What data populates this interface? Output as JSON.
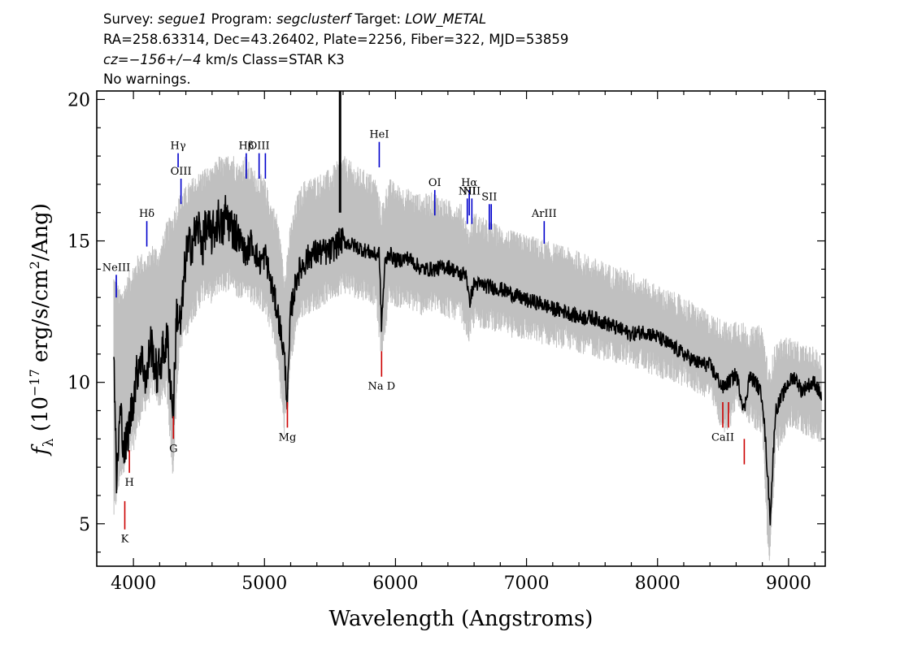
{
  "header": {
    "line1": [
      {
        "text": "Survey: ",
        "italic": false
      },
      {
        "text": "segue1",
        "italic": true
      },
      {
        "text": " Program: ",
        "italic": false
      },
      {
        "text": "segclusterf",
        "italic": true
      },
      {
        "text": " Target: ",
        "italic": false
      },
      {
        "text": "LOW_METAL",
        "italic": true
      }
    ],
    "line2": "RA=258.63314, Dec=43.26402, Plate=2256, Fiber=322, MJD=53859",
    "line3": [
      {
        "text": "cz=",
        "italic": true
      },
      {
        "text": "−156+/−4",
        "italic": true
      },
      {
        "text": " km/s Class=STAR K3",
        "italic": false
      }
    ],
    "line4": "No warnings."
  },
  "chart_data": {
    "type": "line",
    "xlabel": "Wavelength (Angstroms)",
    "ylabel_parts": {
      "f": "f",
      "sub": "λ",
      "pre": " (10",
      "exp1": "−17",
      "mid": " erg/s/cm",
      "exp2": "2",
      "post": "/Ang)"
    },
    "xlim": [
      3720,
      9280
    ],
    "ylim": [
      3.5,
      20.3
    ],
    "xticks": [
      4000,
      5000,
      6000,
      7000,
      8000,
      9000
    ],
    "yticks": [
      5,
      10,
      15,
      20
    ],
    "series": [
      {
        "role": "error-envelope",
        "color": "#c0c0c0",
        "x": [
          3850,
          3900,
          3950,
          4000,
          4050,
          4100,
          4150,
          4200,
          4250,
          4300,
          4350,
          4400,
          4450,
          4500,
          4550,
          4600,
          4650,
          4700,
          4750,
          4800,
          4850,
          4900,
          4950,
          5000,
          5050,
          5100,
          5150,
          5200,
          5250,
          5300,
          5400,
          5500,
          5600,
          5700,
          5800,
          5850,
          5890,
          5950,
          6000,
          6100,
          6200,
          6300,
          6400,
          6500,
          6560,
          6600,
          6700,
          6800,
          6900,
          7000,
          7200,
          7400,
          7600,
          7800,
          8000,
          8200,
          8400,
          8500,
          8550,
          8600,
          8700,
          8800,
          8850,
          8900,
          9000,
          9100,
          9200,
          9250
        ],
        "y": [
          13.5,
          12.8,
          13.3,
          13.8,
          14.2,
          14.0,
          14.5,
          14.3,
          15.2,
          15.6,
          16.2,
          16.5,
          16.8,
          17.0,
          17.2,
          17.1,
          17.6,
          17.5,
          17.8,
          17.3,
          17.6,
          17.2,
          17.0,
          16.8,
          16.0,
          15.5,
          13.5,
          15.2,
          16.2,
          16.7,
          16.9,
          17.1,
          17.6,
          17.2,
          17.0,
          16.8,
          15.8,
          16.8,
          16.6,
          16.4,
          16.2,
          16.3,
          16.0,
          15.9,
          15.0,
          15.6,
          15.3,
          15.1,
          14.9,
          14.8,
          14.5,
          14.2,
          13.8,
          13.5,
          13.0,
          12.6,
          12.0,
          11.8,
          11.6,
          11.9,
          11.5,
          11.6,
          10.0,
          11.0,
          11.2,
          10.9,
          10.8,
          10.6
        ],
        "y_low": [
          5.5,
          7.0,
          7.5,
          8.0,
          9.0,
          9.5,
          10.0,
          9.5,
          10.0,
          7.0,
          11.5,
          12.0,
          12.6,
          13.0,
          13.4,
          13.2,
          13.6,
          13.6,
          13.8,
          13.3,
          13.6,
          13.2,
          13.1,
          12.8,
          12.2,
          11.0,
          8.5,
          11.0,
          12.4,
          12.8,
          13.0,
          13.3,
          13.6,
          13.4,
          13.3,
          13.1,
          11.2,
          13.2,
          13.1,
          13.0,
          12.8,
          12.9,
          12.7,
          12.6,
          11.8,
          12.4,
          12.3,
          12.2,
          12.0,
          11.9,
          11.7,
          11.5,
          11.2,
          11.0,
          10.6,
          10.3,
          9.8,
          8.6,
          8.8,
          9.5,
          9.0,
          8.5,
          3.5,
          7.8,
          8.8,
          8.6,
          8.4,
          8.3
        ]
      },
      {
        "role": "flux",
        "color": "#000000",
        "x": [
          3850,
          3870,
          3900,
          3933,
          3968,
          4000,
          4050,
          4080,
          4101,
          4130,
          4180,
          4220,
          4260,
          4290,
          4305,
          4330,
          4361,
          4400,
          4450,
          4500,
          4530,
          4550,
          4600,
          4650,
          4680,
          4700,
          4750,
          4800,
          4861,
          4900,
          4959,
          5007,
          5050,
          5100,
          5150,
          5175,
          5200,
          5250,
          5300,
          5350,
          5400,
          5500,
          5577,
          5600,
          5700,
          5800,
          5850,
          5876,
          5893,
          5920,
          5950,
          6000,
          6100,
          6200,
          6300,
          6400,
          6500,
          6540,
          6563,
          6600,
          6700,
          6800,
          6900,
          7000,
          7100,
          7200,
          7300,
          7400,
          7500,
          7600,
          7700,
          7800,
          7900,
          8000,
          8100,
          8200,
          8300,
          8400,
          8498,
          8542,
          8600,
          8662,
          8700,
          8750,
          8800,
          8830,
          8860,
          8900,
          8950,
          9000,
          9050,
          9100,
          9150,
          9200,
          9250
        ],
        "y": [
          11.5,
          6.4,
          9.0,
          7.5,
          8.5,
          9.5,
          11.0,
          10.5,
          10.0,
          11.5,
          10.2,
          11.0,
          11.5,
          9.5,
          9.0,
          12.5,
          12.0,
          14.5,
          15.0,
          15.5,
          14.8,
          15.5,
          15.2,
          15.8,
          15.3,
          16.0,
          15.5,
          15.2,
          14.5,
          15.0,
          14.2,
          14.5,
          13.5,
          12.5,
          11.0,
          9.3,
          12.5,
          13.8,
          14.2,
          14.5,
          14.6,
          14.6,
          15.0,
          15.0,
          14.8,
          14.6,
          14.5,
          14.6,
          12.0,
          14.2,
          14.6,
          14.3,
          14.4,
          14.0,
          14.0,
          14.1,
          13.8,
          13.9,
          12.8,
          13.5,
          13.4,
          13.3,
          13.1,
          12.9,
          12.8,
          12.6,
          12.5,
          12.3,
          12.3,
          12.1,
          11.9,
          11.7,
          11.8,
          11.6,
          11.3,
          11.0,
          10.7,
          10.6,
          9.8,
          10.0,
          10.3,
          9.0,
          10.2,
          10.0,
          9.5,
          7.5,
          5.2,
          9.0,
          9.5,
          10.0,
          10.2,
          9.7,
          9.9,
          10.0,
          9.5
        ]
      }
    ],
    "spike": {
      "x": 5577,
      "y_top": 20.3,
      "y_base": 16.0
    },
    "emission_lines": [
      {
        "label": "NeIII",
        "x": 3869,
        "y1": 13.0,
        "y2": 13.8
      },
      {
        "label": "Hδ",
        "x": 4102,
        "y1": 14.8,
        "y2": 15.7
      },
      {
        "label": "Hγ",
        "x": 4341,
        "y1": 17.6,
        "y2": 18.1
      },
      {
        "label": "OIII",
        "x": 4363,
        "y1": 16.3,
        "y2": 17.2
      },
      {
        "label": "Hβ",
        "x": 4861,
        "y1": 17.2,
        "y2": 18.1
      },
      {
        "label": "OIII",
        "x": 4959,
        "y1": 17.2,
        "y2": 18.1
      },
      {
        "label": "",
        "x": 5007,
        "y1": 17.2,
        "y2": 18.1
      },
      {
        "label": "HeI",
        "x": 5876,
        "y1": 17.6,
        "y2": 18.5
      },
      {
        "label": "OI",
        "x": 6300,
        "y1": 15.9,
        "y2": 16.8
      },
      {
        "label": "NII",
        "x": 6548,
        "y1": 15.6,
        "y2": 16.5
      },
      {
        "label": "Hα",
        "x": 6563,
        "y1": 15.9,
        "y2": 16.8
      },
      {
        "label": "NII",
        "x": 6583,
        "y1": 15.6,
        "y2": 16.5
      },
      {
        "label": "SII",
        "x": 6716,
        "y1": 15.4,
        "y2": 16.3
      },
      {
        "label": "",
        "x": 6731,
        "y1": 15.4,
        "y2": 16.3
      },
      {
        "label": "ArIII",
        "x": 7135,
        "y1": 14.9,
        "y2": 15.7
      }
    ],
    "absorption_lines": [
      {
        "label": "K",
        "x": 3934,
        "y1": 5.8,
        "y2": 4.8
      },
      {
        "label": "H",
        "x": 3969,
        "y1": 7.6,
        "y2": 6.8
      },
      {
        "label": "G",
        "x": 4305,
        "y1": 8.8,
        "y2": 8.0
      },
      {
        "label": "Mg",
        "x": 5175,
        "y1": 9.3,
        "y2": 8.4
      },
      {
        "label": "Na D",
        "x": 5894,
        "y1": 11.1,
        "y2": 10.2
      },
      {
        "label": "CaII",
        "x": 8498,
        "y1": 9.3,
        "y2": 8.4
      },
      {
        "label": "",
        "x": 8542,
        "y1": 9.3,
        "y2": 8.4
      },
      {
        "label": "",
        "x": 8662,
        "y1": 8.0,
        "y2": 7.1
      }
    ],
    "colors": {
      "emission": "#0000cc",
      "absorption": "#cc0000",
      "envelope": "#c0c0c0",
      "flux": "#000000"
    }
  }
}
